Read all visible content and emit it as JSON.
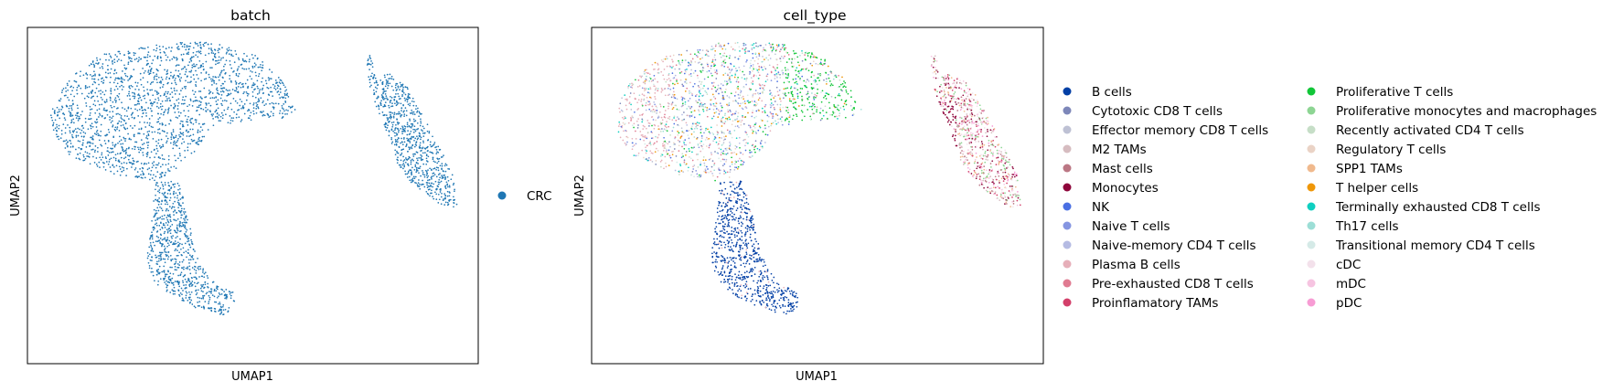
{
  "chart_data": [
    {
      "type": "scatter",
      "title": "batch",
      "xlabel": "UMAP1",
      "ylabel": "UMAP2",
      "grid": false,
      "ticks": "none",
      "legend_placement": "right, outside plot",
      "series": [
        {
          "name": "CRC",
          "color": "#1f77b4",
          "clusters": [
            {
              "region": "main-upper-lobe",
              "share": 0.55
            },
            {
              "region": "lower-stem",
              "share": 0.22
            },
            {
              "region": "right-island",
              "share": 0.23
            }
          ]
        }
      ]
    },
    {
      "type": "scatter",
      "title": "cell_type",
      "xlabel": "UMAP1",
      "ylabel": "UMAP2",
      "grid": false,
      "ticks": "none",
      "legend_placement": "right, outside plot, two columns",
      "series": [
        {
          "name": "B cells",
          "color": "#023fa5",
          "regions": [
            "lower-stem"
          ]
        },
        {
          "name": "Cytotoxic CD8 T cells",
          "color": "#7d87b9",
          "regions": [
            "main-upper-lobe"
          ]
        },
        {
          "name": "Effector memory CD8 T cells",
          "color": "#bec1d4",
          "regions": [
            "main-upper-lobe"
          ]
        },
        {
          "name": "M2 TAMs",
          "color": "#d6bcc0",
          "regions": [
            "right-island"
          ]
        },
        {
          "name": "Mast cells",
          "color": "#bb7784",
          "regions": [
            "right-island"
          ]
        },
        {
          "name": "Monocytes",
          "color": "#8e063b",
          "regions": [
            "right-island"
          ]
        },
        {
          "name": "NK",
          "color": "#4a6fe3",
          "regions": [
            "main-upper-lobe"
          ]
        },
        {
          "name": "Naive T cells",
          "color": "#8595e1",
          "regions": [
            "main-upper-lobe"
          ]
        },
        {
          "name": "Naive-memory CD4 T cells",
          "color": "#b5bbe3",
          "regions": [
            "main-upper-lobe"
          ]
        },
        {
          "name": "Plasma B cells",
          "color": "#e6afb9",
          "regions": [
            "main-upper-lobe",
            "lower-stem"
          ]
        },
        {
          "name": "Pre-exhausted CD8 T cells",
          "color": "#e07b91",
          "regions": [
            "main-upper-lobe"
          ]
        },
        {
          "name": "Proinflamatory TAMs",
          "color": "#d33f6a",
          "regions": [
            "right-island"
          ]
        },
        {
          "name": "Proliferative T cells",
          "color": "#11c638",
          "regions": [
            "main-upper-lobe"
          ]
        },
        {
          "name": "Proliferative monocytes and macrophages",
          "color": "#8dd593",
          "regions": [
            "right-island"
          ]
        },
        {
          "name": "Recently activated CD4 T cells",
          "color": "#c6dec7",
          "regions": [
            "main-upper-lobe"
          ]
        },
        {
          "name": "Regulatory T cells",
          "color": "#ead3c6",
          "regions": [
            "main-upper-lobe"
          ]
        },
        {
          "name": "SPP1 TAMs",
          "color": "#f0b98d",
          "regions": [
            "right-island"
          ]
        },
        {
          "name": "T helper cells",
          "color": "#ef9708",
          "regions": [
            "main-upper-lobe"
          ]
        },
        {
          "name": "Terminally exhausted CD8 T cells",
          "color": "#0fcfc0",
          "regions": [
            "main-upper-lobe"
          ]
        },
        {
          "name": "Th17 cells",
          "color": "#9cded6",
          "regions": [
            "main-upper-lobe"
          ]
        },
        {
          "name": "Transitional memory CD4 T cells",
          "color": "#d5eae7",
          "regions": [
            "main-upper-lobe"
          ]
        },
        {
          "name": "cDC",
          "color": "#f3e1eb",
          "regions": [
            "right-island"
          ]
        },
        {
          "name": "mDC",
          "color": "#f6c4e1",
          "regions": [
            "right-island"
          ]
        },
        {
          "name": "pDC",
          "color": "#f79cd4",
          "regions": [
            "right-island"
          ]
        }
      ]
    }
  ]
}
